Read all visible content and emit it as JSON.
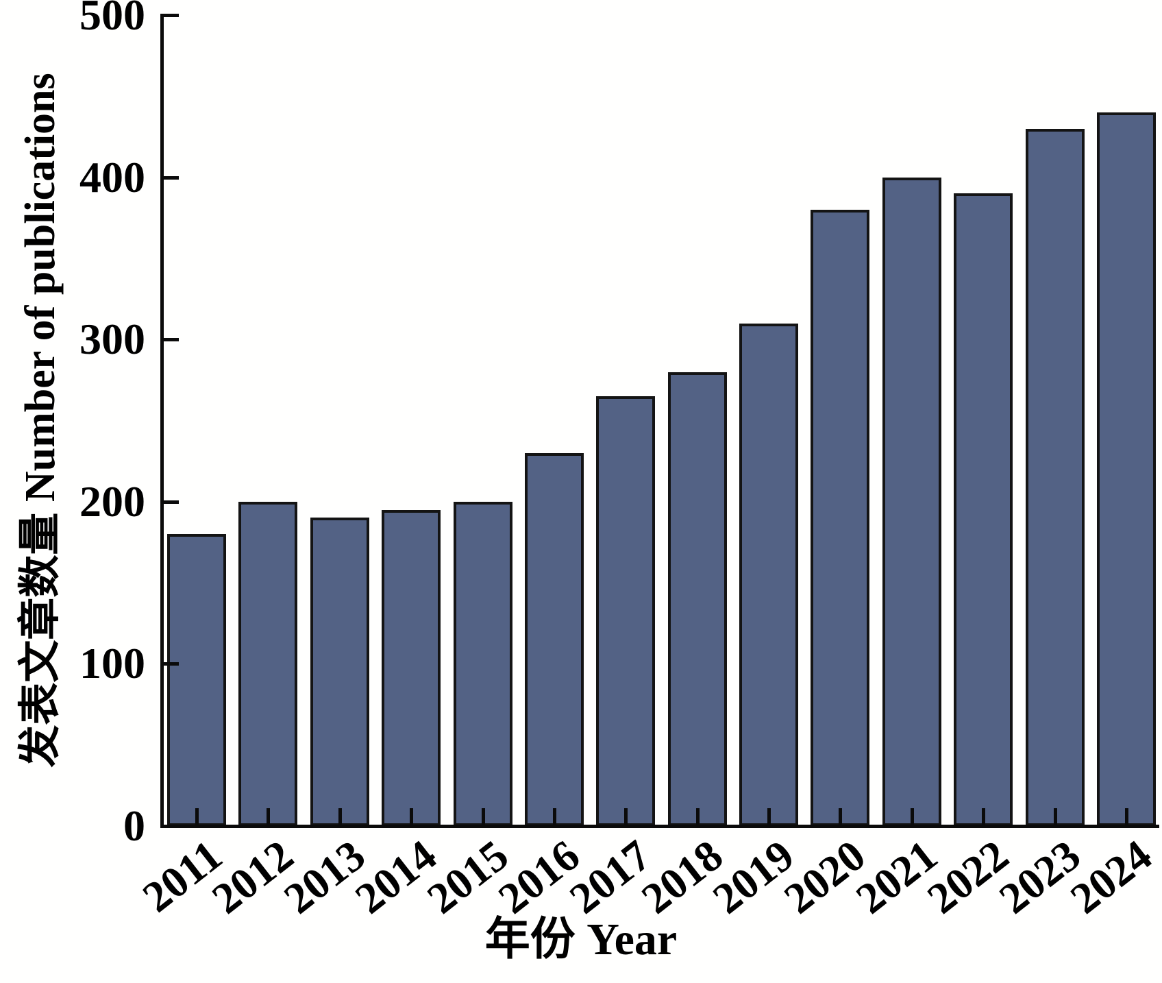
{
  "chart_data": {
    "type": "bar",
    "title": "",
    "categories": [
      "2011",
      "2012",
      "2013",
      "2014",
      "2015",
      "2016",
      "2017",
      "2018",
      "2019",
      "2020",
      "2021",
      "2022",
      "2023",
      "2024"
    ],
    "values": [
      180,
      200,
      190,
      195,
      200,
      230,
      265,
      280,
      310,
      380,
      400,
      390,
      430,
      440
    ],
    "xlabel": "年份 Year",
    "ylabel": "发表文章数量 Number of publications",
    "ylim": [
      0,
      500
    ],
    "yticks": [
      0,
      100,
      200,
      300,
      400,
      500
    ],
    "ytick_labels": [
      "0",
      "100",
      "200",
      "300",
      "400",
      "500"
    ],
    "grid": "off",
    "legend": "none",
    "tick_direction": "in",
    "colors": {
      "bar_fill": "#536285",
      "bar_border": "#141414",
      "axis": "#0b0b0b",
      "background": "#fffffe"
    }
  }
}
